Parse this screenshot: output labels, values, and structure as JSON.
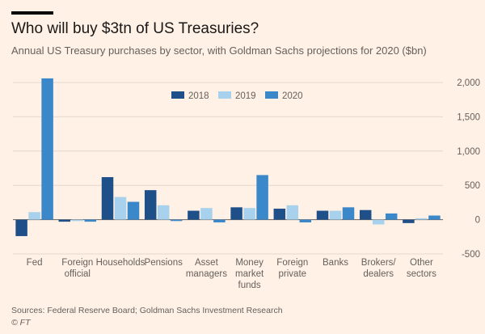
{
  "header": {
    "title": "Who will buy $3tn of US Treasuries?",
    "subtitle": "Annual US Treasury purchases by sector, with Goldman Sachs projections for 2020 ($bn)"
  },
  "footer": {
    "source": "Sources: Federal Reserve Board; Goldman Sachs Investment Research",
    "credit": "© FT"
  },
  "colors": {
    "s2018": "#1f4f88",
    "s2019": "#a7d1ec",
    "s2020": "#3a87c9",
    "grid": "#e3d8cd",
    "zero": "#66605c",
    "text": "#66605c"
  },
  "chart_data": {
    "type": "bar",
    "title": "Who will buy $3tn of US Treasuries?",
    "ylim": [
      -500,
      2000
    ],
    "yticks": [
      -500,
      0,
      500,
      1000,
      1500,
      2000
    ],
    "ytick_labels": [
      "-500",
      "0",
      "500",
      "1,000",
      "1,500",
      "2,000"
    ],
    "categories": [
      "Fed",
      "Foreign official",
      "Households",
      "Pensions",
      "Asset managers",
      "Money market funds",
      "Foreign private",
      "Banks",
      "Brokers/ dealers",
      "Other sectors"
    ],
    "category_lines": [
      [
        "Fed"
      ],
      [
        "Foreign",
        "official"
      ],
      [
        "Households"
      ],
      [
        "Pensions"
      ],
      [
        "Asset",
        "managers"
      ],
      [
        "Money",
        "market",
        "funds"
      ],
      [
        "Foreign",
        "private"
      ],
      [
        "Banks"
      ],
      [
        "Brokers/",
        "dealers"
      ],
      [
        "Other",
        "sectors"
      ]
    ],
    "legend": [
      "2018",
      "2019",
      "2020"
    ],
    "series": [
      {
        "name": "2018",
        "values": [
          -240,
          -30,
          620,
          430,
          130,
          180,
          160,
          130,
          140,
          -50
        ]
      },
      {
        "name": "2019",
        "values": [
          110,
          -20,
          330,
          210,
          170,
          170,
          210,
          130,
          -70,
          20
        ]
      },
      {
        "name": "2020",
        "values": [
          2060,
          -30,
          260,
          -20,
          -40,
          650,
          -40,
          180,
          90,
          60
        ]
      }
    ]
  }
}
